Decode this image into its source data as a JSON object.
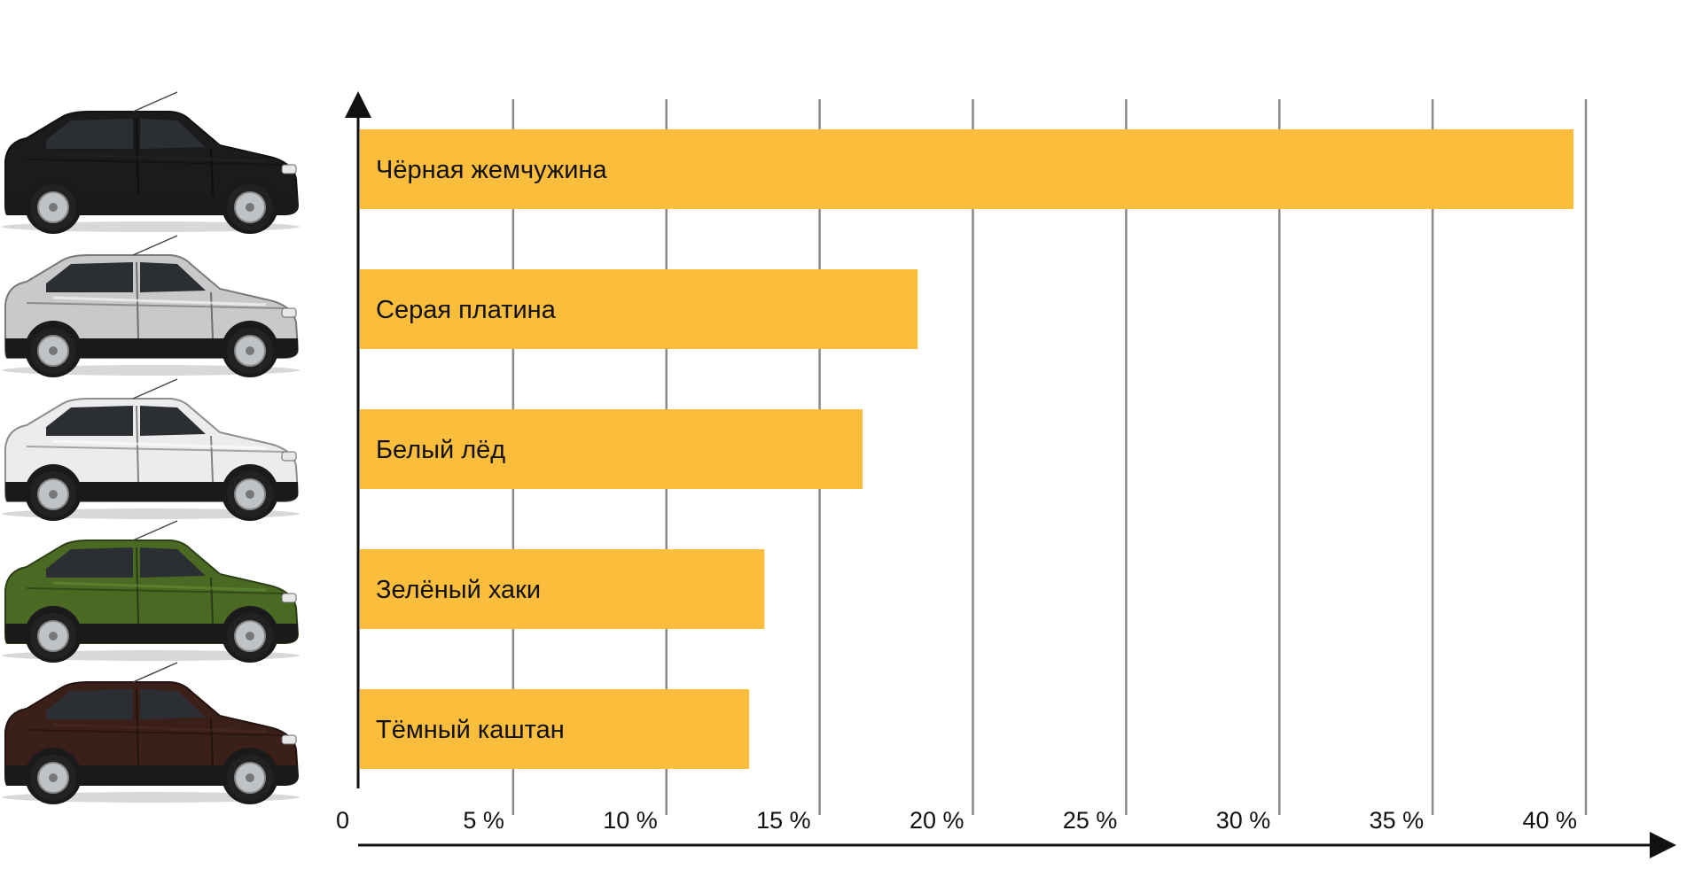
{
  "chart_data": {
    "type": "bar",
    "orientation": "horizontal",
    "categories": [
      "Чёрная жемчужина",
      "Серая платина",
      "Белый лёд",
      "Зелёный хаки",
      "Тёмный каштан"
    ],
    "values": [
      39.6,
      18.2,
      16.4,
      13.2,
      12.7
    ],
    "x_ticks": [
      "0",
      "5 %",
      "10 %",
      "15 %",
      "20 %",
      "25 %",
      "30 %",
      "35 %",
      "40 %"
    ],
    "xlim": [
      0,
      40
    ],
    "grid": true,
    "title": "",
    "xlabel": "",
    "ylabel": "",
    "bar_color": "#fbbd3c",
    "car_colors": [
      "#1b1b1b",
      "#c9c9c9",
      "#ececec",
      "#4a6a24",
      "#3a2018"
    ],
    "car_icons": [
      "suv-black-icon",
      "suv-silver-icon",
      "suv-white-icon",
      "suv-green-icon",
      "suv-brown-icon"
    ]
  }
}
